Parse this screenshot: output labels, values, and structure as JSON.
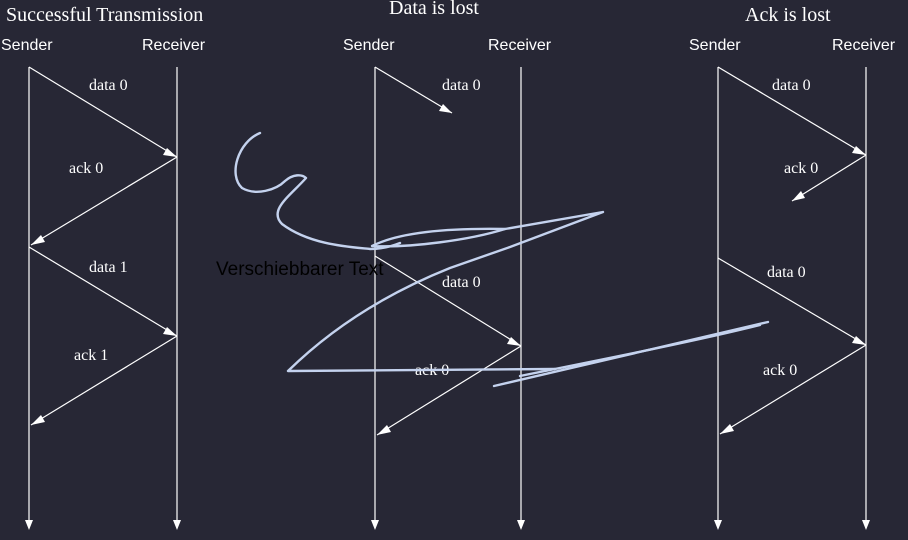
{
  "scenarios": [
    {
      "title": "Successful Transmission",
      "sender_label": "Sender",
      "receiver_label": "Receiver",
      "messages": [
        {
          "label": "data 0",
          "direction": "sender-to-receiver",
          "delivered": true
        },
        {
          "label": "ack 0",
          "direction": "receiver-to-sender",
          "delivered": true
        },
        {
          "label": "data 1",
          "direction": "sender-to-receiver",
          "delivered": true
        },
        {
          "label": "ack 1",
          "direction": "receiver-to-sender",
          "delivered": true
        }
      ]
    },
    {
      "title": "Data is lost",
      "sender_label": "Sender",
      "receiver_label": "Receiver",
      "messages": [
        {
          "label": "data 0",
          "direction": "sender-to-receiver",
          "delivered": false
        },
        {
          "label": "data 0",
          "direction": "sender-to-receiver",
          "delivered": true
        },
        {
          "label": "ack 0",
          "direction": "receiver-to-sender",
          "delivered": true
        }
      ]
    },
    {
      "title": "Ack is lost",
      "sender_label": "Sender",
      "receiver_label": "Receiver",
      "messages": [
        {
          "label": "data 0",
          "direction": "sender-to-receiver",
          "delivered": true
        },
        {
          "label": "ack 0",
          "direction": "receiver-to-sender",
          "delivered": false
        },
        {
          "label": "data 0",
          "direction": "sender-to-receiver",
          "delivered": true
        },
        {
          "label": "ack 0",
          "direction": "receiver-to-sender",
          "delivered": true
        }
      ]
    }
  ],
  "movable_text": "Verschiebbarer Text",
  "colors": {
    "background": "#272735",
    "lines": "#ffffff",
    "scribble": "#c4d2ee",
    "movable_text": "#000000"
  }
}
